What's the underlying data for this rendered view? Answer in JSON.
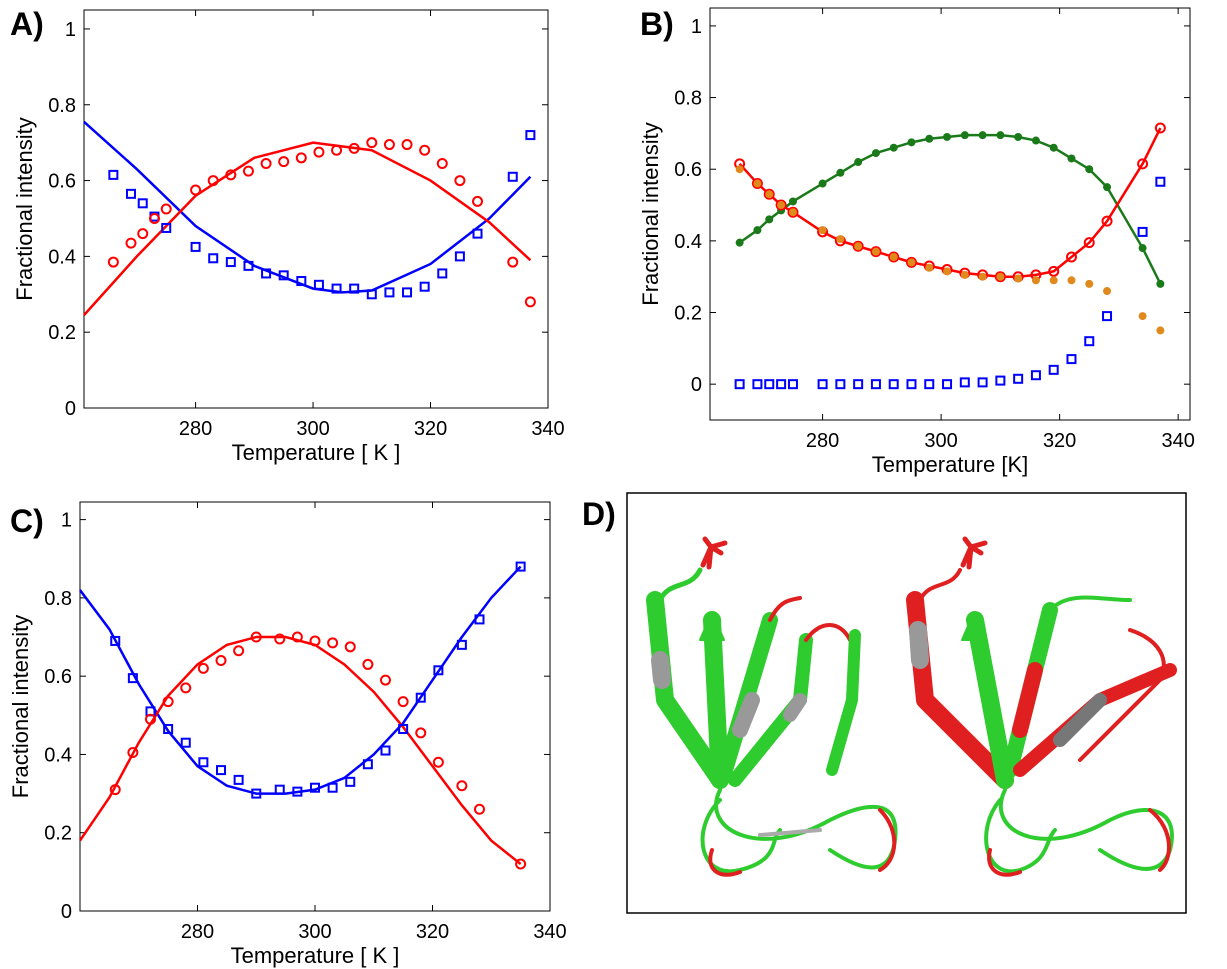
{
  "chart_data": [
    {
      "type": "scatter",
      "label": "A)",
      "xlabel": "Temperature [ K ]",
      "ylabel": "Fractional intensity",
      "xlim": [
        261,
        340
      ],
      "ylim": [
        0,
        1.05
      ],
      "xticks": [
        280,
        300,
        320,
        340
      ],
      "yticks": [
        0,
        0.2,
        0.4,
        0.6,
        0.8,
        1
      ],
      "grid": false,
      "series": [
        {
          "color": "#0000ff",
          "marker": "none",
          "line": true,
          "x": [
            261,
            270,
            280,
            290,
            300,
            305,
            310,
            320,
            330,
            337
          ],
          "values": [
            0.755,
            0.63,
            0.48,
            0.375,
            0.315,
            0.305,
            0.31,
            0.38,
            0.5,
            0.61
          ]
        },
        {
          "color": "#ff0000",
          "marker": "none",
          "line": true,
          "x": [
            261,
            270,
            280,
            290,
            300,
            310,
            320,
            330,
            337
          ],
          "values": [
            0.245,
            0.4,
            0.56,
            0.66,
            0.7,
            0.68,
            0.6,
            0.49,
            0.39
          ]
        },
        {
          "color": "#0000ff",
          "marker": "square",
          "line": false,
          "x": [
            266,
            269,
            271,
            273,
            275,
            280,
            283,
            286,
            289,
            292,
            295,
            298,
            301,
            304,
            307,
            310,
            313,
            316,
            319,
            322,
            325,
            328,
            334,
            337
          ],
          "values": [
            0.615,
            0.565,
            0.54,
            0.505,
            0.475,
            0.425,
            0.395,
            0.385,
            0.375,
            0.355,
            0.35,
            0.335,
            0.325,
            0.315,
            0.315,
            0.3,
            0.305,
            0.305,
            0.32,
            0.355,
            0.4,
            0.46,
            0.61,
            0.72
          ]
        },
        {
          "color": "#ff0000",
          "marker": "circle",
          "line": false,
          "x": [
            266,
            269,
            271,
            273,
            275,
            280,
            283,
            286,
            289,
            292,
            295,
            298,
            301,
            304,
            307,
            310,
            313,
            316,
            319,
            322,
            325,
            328,
            334,
            337
          ],
          "values": [
            0.385,
            0.435,
            0.46,
            0.5,
            0.525,
            0.575,
            0.6,
            0.615,
            0.625,
            0.645,
            0.65,
            0.66,
            0.675,
            0.68,
            0.685,
            0.7,
            0.695,
            0.695,
            0.68,
            0.645,
            0.6,
            0.545,
            0.385,
            0.28
          ]
        }
      ]
    },
    {
      "type": "scatter",
      "label": "B)",
      "xlabel": "Temperature [K]",
      "ylabel": "Fractional intensity",
      "xlim": [
        261,
        342
      ],
      "ylim": [
        -0.1,
        1.05
      ],
      "xticks": [
        280,
        300,
        320,
        340
      ],
      "yticks": [
        0,
        0.2,
        0.4,
        0.6,
        0.8,
        1
      ],
      "grid": false,
      "series": [
        {
          "color": "#1a7a1a",
          "marker": "dot",
          "line": true,
          "x": [
            266,
            269,
            271,
            273,
            275,
            280,
            283,
            286,
            289,
            292,
            295,
            298,
            301,
            304,
            307,
            310,
            313,
            316,
            319,
            322,
            325,
            328,
            334,
            337
          ],
          "values": [
            0.395,
            0.43,
            0.46,
            0.485,
            0.51,
            0.56,
            0.59,
            0.62,
            0.645,
            0.66,
            0.675,
            0.685,
            0.69,
            0.695,
            0.695,
            0.695,
            0.69,
            0.68,
            0.66,
            0.63,
            0.6,
            0.55,
            0.38,
            0.28
          ]
        },
        {
          "color": "#ff0000",
          "marker": "circle",
          "line": true,
          "x": [
            266,
            269,
            271,
            273,
            275,
            280,
            283,
            286,
            289,
            292,
            295,
            298,
            301,
            304,
            307,
            310,
            313,
            316,
            319,
            322,
            325,
            328,
            334,
            337
          ],
          "values": [
            0.615,
            0.56,
            0.53,
            0.5,
            0.48,
            0.425,
            0.4,
            0.385,
            0.37,
            0.355,
            0.34,
            0.33,
            0.32,
            0.31,
            0.305,
            0.3,
            0.3,
            0.305,
            0.315,
            0.355,
            0.395,
            0.455,
            0.615,
            0.715
          ]
        },
        {
          "color": "#e08a1e",
          "marker": "dot",
          "line": false,
          "x": [
            266,
            269,
            271,
            273,
            275,
            280,
            283,
            286,
            289,
            292,
            295,
            298,
            301,
            304,
            307,
            310,
            313,
            316,
            319,
            322,
            325,
            328,
            334,
            337
          ],
          "values": [
            0.6,
            0.56,
            0.53,
            0.5,
            0.48,
            0.43,
            0.405,
            0.385,
            0.37,
            0.355,
            0.34,
            0.325,
            0.315,
            0.305,
            0.3,
            0.3,
            0.295,
            0.29,
            0.29,
            0.29,
            0.28,
            0.26,
            0.19,
            0.15
          ]
        },
        {
          "color": "#0000ff",
          "marker": "square",
          "line": false,
          "x": [
            266,
            269,
            271,
            273,
            275,
            280,
            283,
            286,
            289,
            292,
            295,
            298,
            301,
            304,
            307,
            310,
            313,
            316,
            319,
            322,
            325,
            328,
            334,
            337
          ],
          "values": [
            0,
            0,
            0,
            0,
            0,
            0,
            0,
            0,
            0,
            0,
            0,
            0,
            0,
            0.005,
            0.005,
            0.01,
            0.015,
            0.025,
            0.04,
            0.07,
            0.12,
            0.19,
            0.425,
            0.565
          ]
        }
      ]
    },
    {
      "type": "scatter",
      "label": "C)",
      "xlabel": "Temperature [ K ]",
      "ylabel": "Fractional intensity",
      "xlim": [
        260,
        340
      ],
      "ylim": [
        0,
        1.045
      ],
      "xticks": [
        280,
        300,
        320,
        340
      ],
      "yticks": [
        0,
        0.2,
        0.4,
        0.6,
        0.8,
        1
      ],
      "grid": false,
      "series": [
        {
          "color": "#0000ff",
          "marker": "none",
          "line": true,
          "x": [
            260,
            265,
            270,
            275,
            280,
            285,
            290,
            295,
            300,
            305,
            310,
            315,
            320,
            325,
            330,
            335
          ],
          "values": [
            0.82,
            0.72,
            0.58,
            0.46,
            0.37,
            0.32,
            0.3,
            0.3,
            0.31,
            0.34,
            0.4,
            0.48,
            0.59,
            0.7,
            0.8,
            0.88
          ]
        },
        {
          "color": "#ff0000",
          "marker": "none",
          "line": true,
          "x": [
            260,
            265,
            270,
            275,
            280,
            285,
            290,
            295,
            300,
            305,
            310,
            315,
            320,
            325,
            330,
            335
          ],
          "values": [
            0.18,
            0.29,
            0.43,
            0.55,
            0.63,
            0.68,
            0.7,
            0.7,
            0.68,
            0.63,
            0.56,
            0.47,
            0.37,
            0.27,
            0.18,
            0.12
          ]
        },
        {
          "color": "#0000ff",
          "marker": "square",
          "line": false,
          "x": [
            266,
            269,
            272,
            275,
            278,
            281,
            284,
            287,
            290,
            294,
            297,
            300,
            303,
            306,
            309,
            312,
            315,
            318,
            321,
            325,
            328,
            335
          ],
          "values": [
            0.69,
            0.595,
            0.51,
            0.465,
            0.43,
            0.38,
            0.36,
            0.335,
            0.3,
            0.31,
            0.305,
            0.315,
            0.315,
            0.33,
            0.375,
            0.41,
            0.465,
            0.545,
            0.615,
            0.68,
            0.745,
            0.88
          ]
        },
        {
          "color": "#ff0000",
          "marker": "circle",
          "line": false,
          "x": [
            266,
            269,
            272,
            275,
            278,
            281,
            284,
            287,
            290,
            294,
            297,
            300,
            303,
            306,
            309,
            312,
            315,
            318,
            321,
            325,
            328,
            335
          ],
          "values": [
            0.31,
            0.405,
            0.49,
            0.535,
            0.57,
            0.62,
            0.64,
            0.665,
            0.7,
            0.695,
            0.7,
            0.69,
            0.685,
            0.675,
            0.63,
            0.59,
            0.535,
            0.455,
            0.38,
            0.32,
            0.26,
            0.12
          ]
        }
      ]
    }
  ],
  "panel_d": {
    "label": "D)"
  }
}
